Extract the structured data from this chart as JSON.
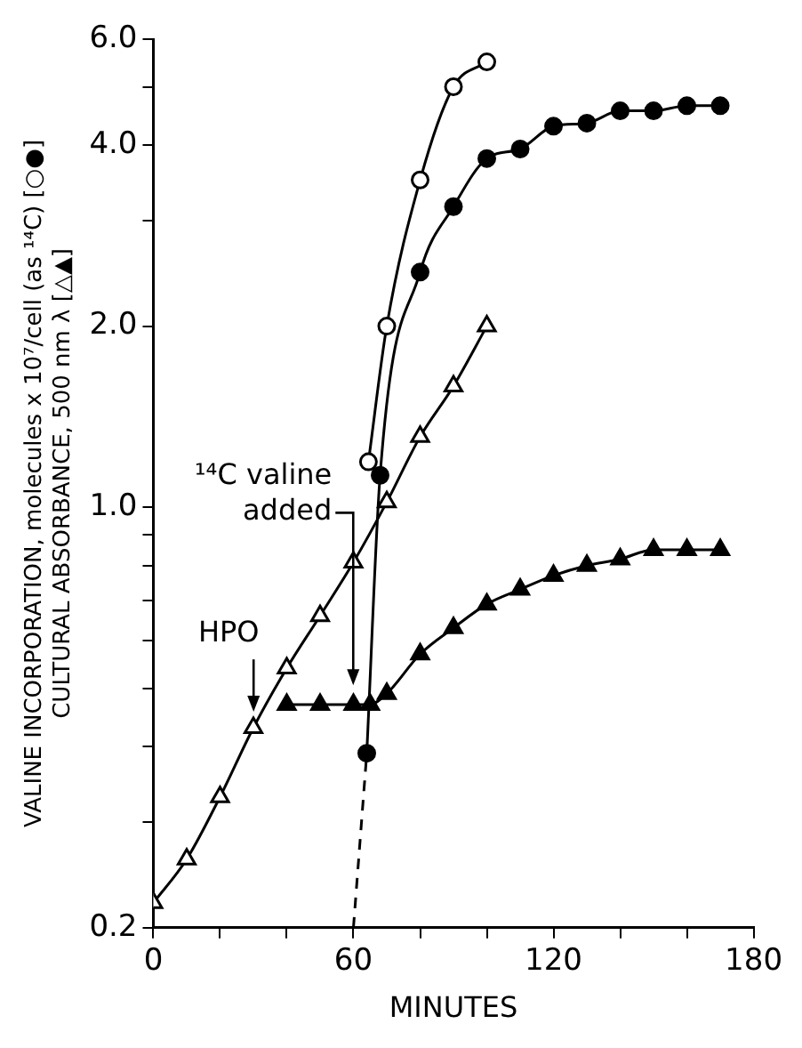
{
  "chart_data": {
    "type": "line",
    "xlabel": "MINUTES",
    "ylabel": "VALINE INCORPORATION, molecules x 10⁷/cell (as ¹⁴C) [○●]\nCULTURAL ABSORBANCE, 500 nm λ [△▲]",
    "xlim": [
      0,
      180
    ],
    "xticks": [
      0,
      {
        "value": 20,
        "label": null
      },
      {
        "value": 40,
        "label": null
      },
      60,
      {
        "value": 80,
        "label": null
      },
      {
        "value": 100,
        "label": null
      },
      120,
      {
        "value": 140,
        "label": null
      },
      {
        "value": 160,
        "label": null
      },
      180
    ],
    "ylim": [
      0.2,
      6
    ],
    "yticks": [
      {
        "value": 0.2,
        "label": "0.2"
      },
      {
        "value": 0.3,
        "label": null
      },
      {
        "value": 0.4,
        "label": null
      },
      {
        "value": 0.5,
        "label": null
      },
      {
        "value": 0.6,
        "label": null
      },
      {
        "value": 0.7,
        "label": null
      },
      {
        "value": 0.8,
        "label": null
      },
      {
        "value": 0.9,
        "label": null
      },
      {
        "value": 1,
        "label": "1.0"
      },
      {
        "value": 2,
        "label": "2.0"
      },
      {
        "value": 3,
        "label": null
      },
      {
        "value": 4,
        "label": "4.0"
      },
      {
        "value": 5,
        "label": null
      },
      {
        "value": 6,
        "label": "6.0"
      }
    ],
    "log": true,
    "grid": false,
    "legend": false,
    "series": [
      {
        "color": "#ffffff",
        "marker": "triangle",
        "x": [
          0,
          10,
          20,
          30,
          40,
          50,
          60,
          70,
          80,
          90,
          100
        ],
        "values": [
          0.22,
          0.26,
          0.33,
          0.43,
          0.54,
          0.66,
          0.81,
          1.02,
          1.31,
          1.59,
          2.0
        ]
      },
      {
        "color": "#000000",
        "marker": "triangle",
        "x": [
          40,
          50,
          60,
          65,
          70,
          80,
          90,
          100,
          110,
          120,
          130,
          140,
          150,
          160,
          170
        ],
        "values": [
          0.47,
          0.47,
          0.47,
          0.47,
          0.49,
          0.57,
          0.63,
          0.69,
          0.73,
          0.77,
          0.8,
          0.82,
          0.85,
          0.85,
          0.85
        ]
      },
      {
        "color": "#ffffff",
        "marker": "circle",
        "x": [
          64.5,
          70,
          80,
          90,
          100
        ],
        "values": [
          1.19,
          2.0,
          3.5,
          5.0,
          5.5
        ]
      },
      {
        "color": "#000000",
        "marker": "circle",
        "x": [
          64,
          68,
          80,
          90,
          100,
          110,
          120,
          130,
          140,
          150,
          160,
          170
        ],
        "values": [
          0.39,
          1.13,
          2.46,
          3.16,
          3.8,
          3.94,
          4.3,
          4.35,
          4.56,
          4.56,
          4.65,
          4.65
        ]
      },
      {
        "color": "#000000",
        "marker": "none",
        "line_style": "dashed",
        "x": [
          60,
          64
        ],
        "values": [
          0.2,
          0.39
        ]
      }
    ],
    "annotations": [
      "HPO",
      "¹⁴C valine added"
    ]
  }
}
